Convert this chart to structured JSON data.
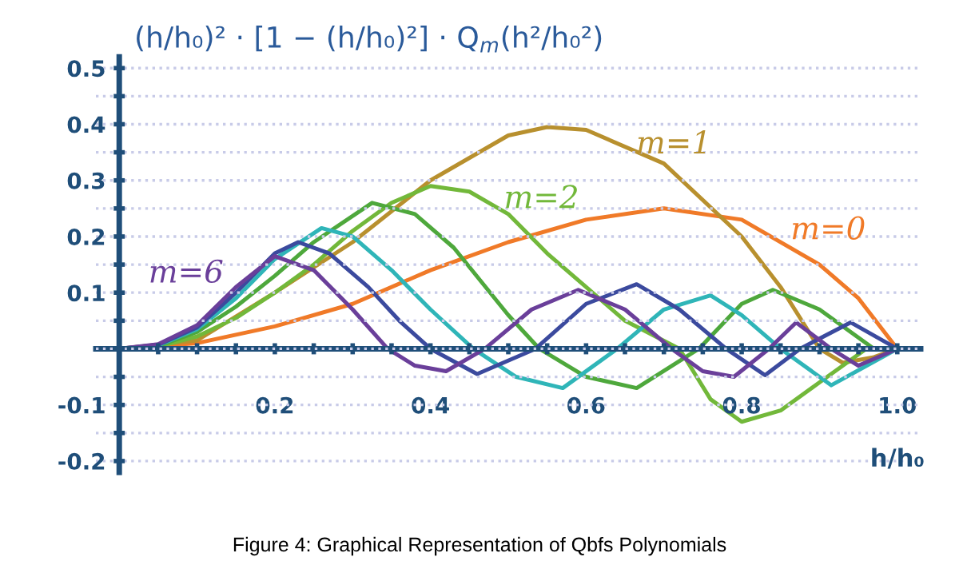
{
  "chart_data": {
    "type": "line",
    "title": "(h/h₀)² · [1 − (h/h₀)²] · Q$_{m}$(h²/h₀²)",
    "xlabel": "h/h₀",
    "annotations": [
      "Figure 4: Graphical Representation of Qbfs Polynomials"
    ],
    "xlim": [
      -0.03,
      1.03
    ],
    "ylim": [
      -0.22,
      0.52
    ],
    "xticks": [
      {
        "value": 0.05,
        "label": null
      },
      {
        "value": 0.1,
        "label": null
      },
      {
        "value": 0.15,
        "label": null
      },
      0.2,
      {
        "value": 0.25,
        "label": null
      },
      {
        "value": 0.3,
        "label": null
      },
      {
        "value": 0.35,
        "label": null
      },
      0.4,
      {
        "value": 0.45,
        "label": null
      },
      {
        "value": 0.5,
        "label": null
      },
      {
        "value": 0.55,
        "label": null
      },
      0.6,
      {
        "value": 0.65,
        "label": null
      },
      {
        "value": 0.7,
        "label": null
      },
      {
        "value": 0.75,
        "label": null
      },
      0.8,
      {
        "value": 0.85,
        "label": null
      },
      {
        "value": 0.9,
        "label": null
      },
      {
        "value": 0.95,
        "label": null
      },
      {
        "value": 1.0,
        "label": "1.0"
      }
    ],
    "yticks": [
      -0.2,
      {
        "value": -0.15,
        "label": null
      },
      -0.1,
      {
        "value": -0.05,
        "label": null
      },
      {
        "value": 0,
        "label": null
      },
      {
        "value": 0.05,
        "label": null
      },
      0.1,
      {
        "value": 0.15,
        "label": null
      },
      0.2,
      {
        "value": 0.25,
        "label": null
      },
      0.3,
      {
        "value": 0.35,
        "label": null
      },
      0.4,
      {
        "value": 0.45,
        "label": null
      },
      0.5
    ],
    "grid": "y",
    "marker": "none",
    "line_style": "solid",
    "series": [
      {
        "name": "m=0",
        "color": "#f07a28",
        "x": [
          0,
          0.1,
          0.2,
          0.3,
          0.4,
          0.5,
          0.6,
          0.7,
          0.8,
          0.9,
          0.95,
          1.0
        ],
        "values": [
          0,
          0.01,
          0.04,
          0.08,
          0.14,
          0.19,
          0.23,
          0.25,
          0.23,
          0.15,
          0.09,
          0
        ]
      },
      {
        "name": "m=1",
        "color": "#b8902e",
        "x": [
          0,
          0.1,
          0.2,
          0.3,
          0.4,
          0.5,
          0.55,
          0.6,
          0.7,
          0.8,
          0.85,
          0.9,
          0.93,
          0.97,
          1.0
        ],
        "values": [
          0,
          0.015,
          0.1,
          0.19,
          0.3,
          0.38,
          0.395,
          0.39,
          0.33,
          0.2,
          0.11,
          0,
          -0.025,
          -0.015,
          0
        ]
      },
      {
        "name": "m=2",
        "color": "#72b83a",
        "x": [
          0,
          0.05,
          0.1,
          0.15,
          0.2,
          0.25,
          0.3,
          0.35,
          0.4,
          0.45,
          0.5,
          0.55,
          0.6,
          0.65,
          0.72,
          0.76,
          0.8,
          0.85,
          0.9,
          0.96,
          1.0
        ],
        "values": [
          0,
          0.004,
          0.022,
          0.055,
          0.1,
          0.15,
          0.21,
          0.26,
          0.29,
          0.28,
          0.24,
          0.17,
          0.11,
          0.05,
          0,
          -0.09,
          -0.13,
          -0.11,
          -0.06,
          0,
          0
        ]
      },
      {
        "color": "#4ea83c",
        "x": [
          0,
          0.05,
          0.1,
          0.15,
          0.2,
          0.25,
          0.325,
          0.38,
          0.43,
          0.5,
          0.54,
          0.6,
          0.665,
          0.745,
          0.8,
          0.84,
          0.9,
          0.97,
          1.0
        ],
        "values": [
          0,
          0.005,
          0.03,
          0.075,
          0.13,
          0.19,
          0.26,
          0.24,
          0.18,
          0.06,
          0,
          -0.05,
          -0.07,
          0,
          0.08,
          0.105,
          0.07,
          0,
          0
        ]
      },
      {
        "color": "#2fb5b8",
        "x": [
          0,
          0.05,
          0.1,
          0.15,
          0.2,
          0.26,
          0.3,
          0.35,
          0.4,
          0.455,
          0.51,
          0.57,
          0.64,
          0.7,
          0.76,
          0.8,
          0.85,
          0.915,
          1.0
        ],
        "values": [
          0,
          0.006,
          0.035,
          0.09,
          0.16,
          0.215,
          0.2,
          0.14,
          0.07,
          0,
          -0.05,
          -0.07,
          0,
          0.07,
          0.095,
          0.06,
          0,
          -0.065,
          0
        ]
      },
      {
        "color": "#3b4a9e",
        "x": [
          0,
          0.05,
          0.1,
          0.15,
          0.2,
          0.23,
          0.27,
          0.32,
          0.36,
          0.4,
          0.46,
          0.535,
          0.6,
          0.665,
          0.72,
          0.78,
          0.83,
          0.875,
          0.94,
          1.0
        ],
        "values": [
          0,
          0.007,
          0.038,
          0.1,
          0.17,
          0.19,
          0.17,
          0.11,
          0.05,
          0,
          -0.045,
          0,
          0.08,
          0.115,
          0.07,
          0,
          -0.047,
          0,
          0.047,
          0
        ]
      },
      {
        "name": "m=6",
        "color": "#6a3f9a",
        "x": [
          0,
          0.05,
          0.1,
          0.15,
          0.2,
          0.25,
          0.3,
          0.345,
          0.38,
          0.42,
          0.47,
          0.53,
          0.59,
          0.65,
          0.71,
          0.75,
          0.79,
          0.835,
          0.87,
          0.915,
          0.95,
          1.0
        ],
        "values": [
          0,
          0.008,
          0.042,
          0.11,
          0.165,
          0.14,
          0.07,
          0,
          -0.03,
          -0.04,
          0,
          0.07,
          0.105,
          0.07,
          0,
          -0.04,
          -0.05,
          0,
          0.047,
          0,
          -0.03,
          0
        ]
      }
    ]
  }
}
